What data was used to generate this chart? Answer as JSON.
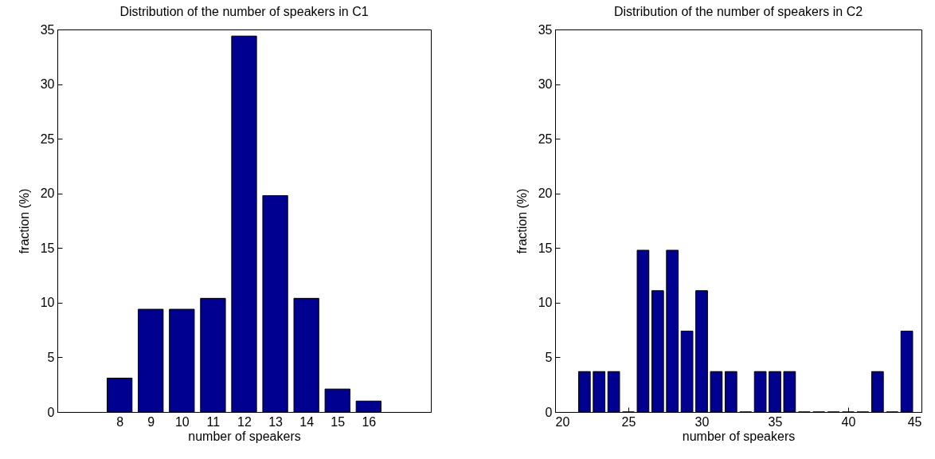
{
  "chart_data": [
    {
      "type": "bar",
      "title": "Distribution of the number of speakers in C1",
      "xlabel": "number of speakers",
      "ylabel": "fraction (%)",
      "x": [
        8,
        9,
        10,
        11,
        12,
        13,
        14,
        15,
        16
      ],
      "values": [
        3.1,
        9.4,
        9.4,
        10.4,
        34.4,
        19.8,
        10.4,
        2.1,
        1.0
      ],
      "color": "#000090",
      "xlim": [
        6,
        18
      ],
      "xticks": [
        8,
        9,
        10,
        11,
        12,
        13,
        14,
        15,
        16
      ],
      "ylim": [
        0,
        35
      ],
      "yticks": [
        0,
        5,
        10,
        15,
        20,
        25,
        30,
        35
      ]
    },
    {
      "type": "bar",
      "title": "Distribution of the number of speakers in C2",
      "xlabel": "number of speakers",
      "ylabel": "fraction (%)",
      "x": [
        22,
        23,
        24,
        25,
        26,
        27,
        28,
        29,
        30,
        31,
        32,
        33,
        34,
        35,
        36,
        37,
        38,
        39,
        40,
        41,
        42,
        43,
        44
      ],
      "values": [
        3.7,
        3.7,
        3.7,
        0,
        14.8,
        11.1,
        14.8,
        7.4,
        11.1,
        3.7,
        3.7,
        0,
        3.7,
        3.7,
        3.7,
        0,
        0,
        0,
        0,
        0,
        3.7,
        0,
        7.4
      ],
      "color": "#000090",
      "xlim": [
        20,
        45
      ],
      "xticks": [
        20,
        25,
        30,
        35,
        40,
        45
      ],
      "ylim": [
        0,
        35
      ],
      "yticks": [
        0,
        5,
        10,
        15,
        20,
        25,
        30,
        35
      ]
    }
  ]
}
